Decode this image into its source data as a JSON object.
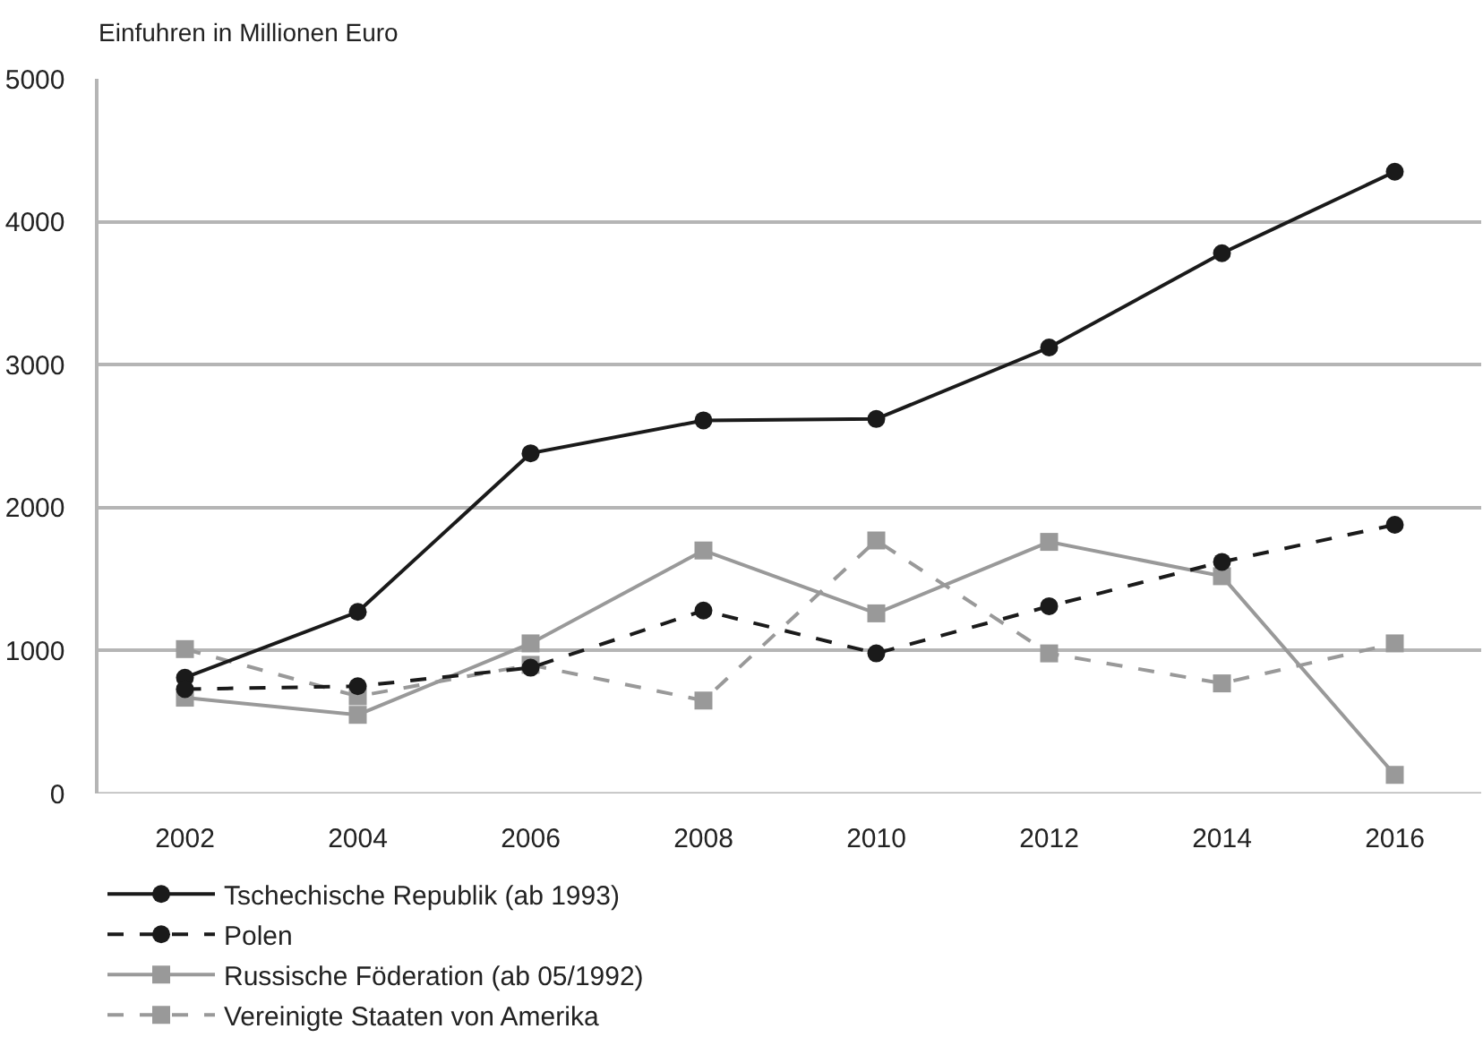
{
  "chart_data": {
    "type": "line",
    "ylabel": "Einfuhren in Millionen Euro",
    "x": [
      2002,
      2004,
      2006,
      2008,
      2010,
      2012,
      2014,
      2016
    ],
    "xlim": [
      2001,
      2017
    ],
    "xticks": [
      2002,
      2004,
      2006,
      2008,
      2010,
      2012,
      2014,
      2016
    ],
    "ylim": [
      0,
      5000
    ],
    "yticks": [
      0,
      1000,
      2000,
      3000,
      4000,
      5000
    ],
    "grid": "y",
    "legend": "bottom",
    "series": [
      {
        "name": "Tschechische Republik (ab 1993)",
        "color": "#1a1a1a",
        "marker": "circle",
        "line_style": "solid",
        "values": [
          810,
          1270,
          2380,
          2610,
          2620,
          3120,
          3780,
          4350
        ]
      },
      {
        "name": "Polen",
        "color": "#1a1a1a",
        "marker": "circle",
        "line_style": "dashed",
        "values": [
          730,
          750,
          880,
          1280,
          980,
          1310,
          1620,
          1880
        ]
      },
      {
        "name": "Russische Föderation (ab 05/1992)",
        "color": "#999999",
        "marker": "square",
        "line_style": "solid",
        "values": [
          670,
          550,
          1050,
          1700,
          1260,
          1760,
          1520,
          130
        ]
      },
      {
        "name": "Vereinigte Staaten von Amerika",
        "color": "#999999",
        "marker": "square",
        "line_style": "dashed",
        "values": [
          1010,
          680,
          900,
          650,
          1770,
          980,
          770,
          1050
        ]
      }
    ]
  }
}
